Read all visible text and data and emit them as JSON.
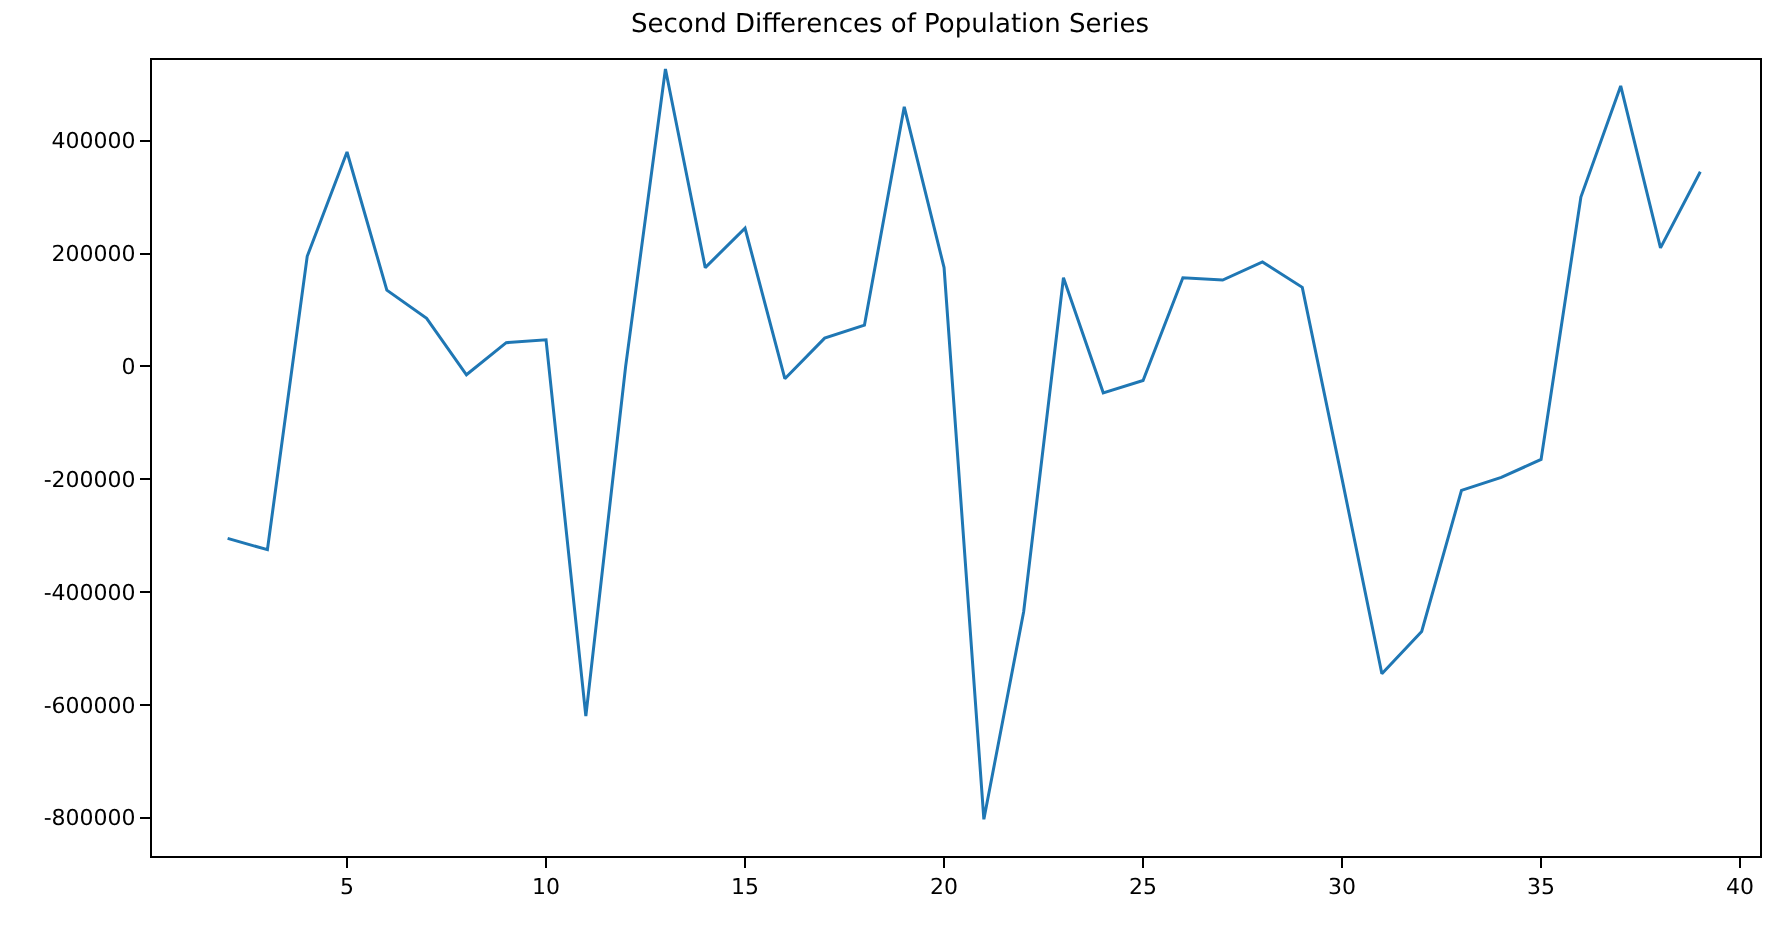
{
  "chart_data": {
    "type": "line",
    "title": "Second Differences of Population Series",
    "x": [
      2,
      3,
      4,
      5,
      6,
      7,
      8,
      9,
      10,
      11,
      12,
      13,
      14,
      15,
      16,
      17,
      18,
      19,
      20,
      21,
      22,
      23,
      24,
      25,
      26,
      27,
      28,
      29,
      30,
      31,
      32,
      33,
      34,
      35,
      36,
      37,
      38,
      39
    ],
    "series": [
      {
        "color": "#1f77b4",
        "values": [
          -305000,
          -325000,
          195000,
          380000,
          135000,
          85000,
          -15000,
          42000,
          47000,
          -620000,
          0,
          527000,
          175000,
          245000,
          -22000,
          50000,
          73000,
          460000,
          175000,
          -803000,
          -435000,
          157000,
          -47000,
          -25000,
          157000,
          153000,
          185000,
          140000,
          -200000,
          -545000,
          -470000,
          -220000,
          -197000,
          -165000,
          300000,
          497000,
          210000,
          345000
        ]
      }
    ],
    "xlim": [
      0.1,
      40.5
    ],
    "xticks": [
      5,
      10,
      15,
      20,
      25,
      30,
      35,
      40
    ],
    "ylim": [
      -868000,
      543000
    ],
    "yticks": [
      -800000,
      -600000,
      -400000,
      -200000,
      0,
      200000,
      400000
    ],
    "legend": false,
    "marker": "none",
    "line_style": "solid"
  }
}
